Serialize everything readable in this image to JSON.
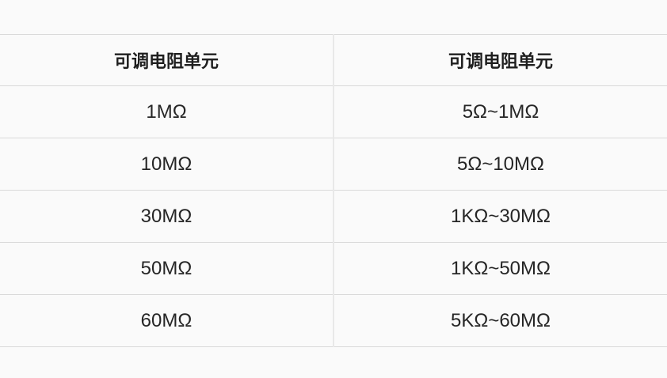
{
  "table": {
    "columns": [
      {
        "header": "可调电阻单元"
      },
      {
        "header": "可调电阻单元"
      }
    ],
    "rows": [
      {
        "unit": "1MΩ",
        "range": "5Ω~1MΩ"
      },
      {
        "unit": "10MΩ",
        "range": "5Ω~10MΩ"
      },
      {
        "unit": "30MΩ",
        "range": "1KΩ~30MΩ"
      },
      {
        "unit": "50MΩ",
        "range": "1KΩ~50MΩ"
      },
      {
        "unit": "60MΩ",
        "range": "5KΩ~60MΩ"
      }
    ],
    "colors": {
      "page_background": "#fafafa",
      "row_separator": "#d9d9d9",
      "column_divider": "#e8e8e8",
      "header_text": "#1f1f1f",
      "cell_text": "#262626"
    }
  }
}
